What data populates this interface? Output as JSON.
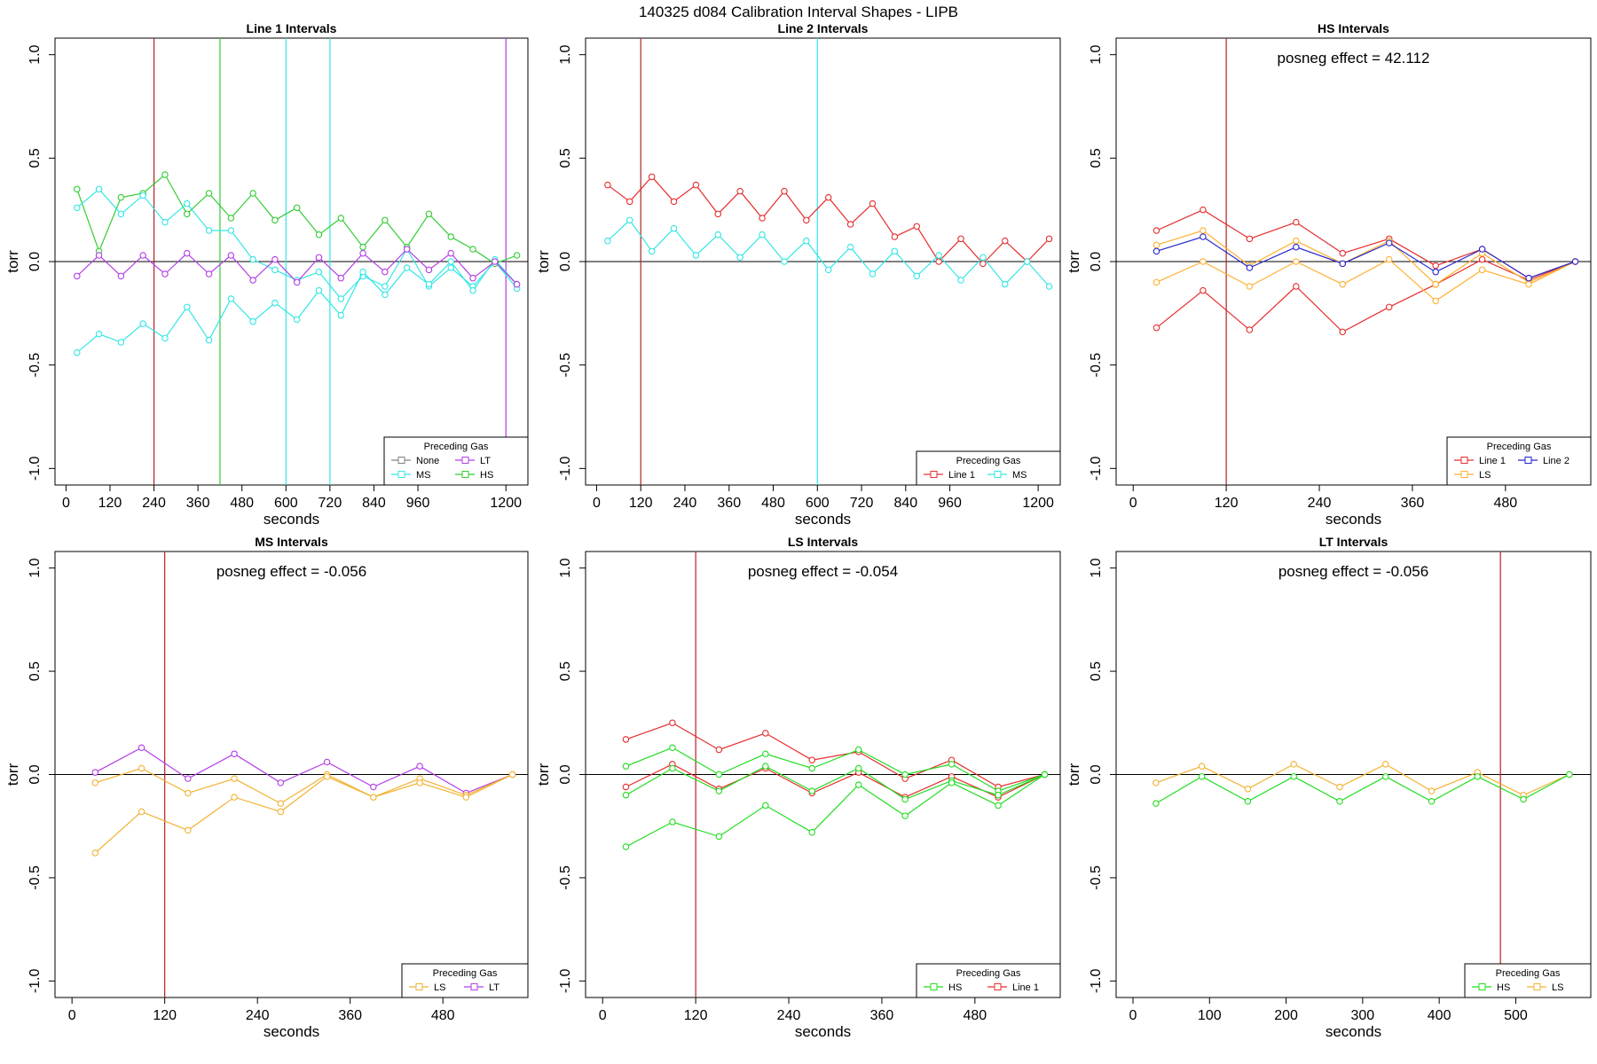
{
  "page_title": "140325   d084   Calibration Interval Shapes - LIPB",
  "colors": {
    "None": "#808080",
    "MS": "#33e6e6",
    "LT": "#b33de6",
    "HS": "#33cc33",
    "Line 1": "#e62e2e",
    "Line 2": "#2626cc",
    "LS": "#ffb030",
    "LS_ms_plot": "#f2b233",
    "HS_ls_plot": "#22dd22",
    "HS_lt_plot": "#22dd22",
    "zero_line": "#000000",
    "vline_red": "#b22222"
  },
  "chart_data": [
    {
      "type": "line",
      "title": "Line 1 Intervals",
      "xlabel": "seconds",
      "ylabel": "torr",
      "xlim": [
        -30,
        1260
      ],
      "ylim": [
        -1.08,
        1.08
      ],
      "xticks": [
        0,
        120,
        240,
        360,
        480,
        600,
        720,
        840,
        960,
        1200
      ],
      "yticks": [
        1.0,
        0.5,
        0.0,
        -0.5,
        -1.0
      ],
      "vlines": [
        {
          "x": 240,
          "color": "#b22222"
        },
        {
          "x": 420,
          "color": "#33cc33"
        },
        {
          "x": 600,
          "color": "#33e6e6"
        },
        {
          "x": 720,
          "color": "#33e6e6"
        },
        {
          "x": 1200,
          "color": "#b33de6"
        }
      ],
      "legend": {
        "title": "Preceding Gas",
        "position": "bottom-right",
        "entries": [
          [
            "None",
            "#808080"
          ],
          [
            "LT",
            "#b33de6"
          ],
          [
            "MS",
            "#33e6e6"
          ],
          [
            "HS",
            "#33cc33"
          ]
        ],
        "cols": 2
      },
      "series": [
        {
          "name": "HS",
          "color": "#33cc33",
          "x": [
            30,
            90,
            150,
            210,
            270,
            330,
            390,
            450,
            510,
            570,
            630,
            690,
            750,
            810,
            870,
            930,
            990,
            1050,
            1110,
            1170,
            1230
          ],
          "y": [
            0.35,
            0.05,
            0.31,
            0.33,
            0.42,
            0.23,
            0.33,
            0.21,
            0.33,
            0.2,
            0.26,
            0.13,
            0.21,
            0.07,
            0.2,
            0.07,
            0.23,
            0.12,
            0.06,
            -0.01,
            0.03
          ]
        },
        {
          "name": "MS",
          "color": "#33e6e6",
          "x": [
            30,
            90,
            150,
            210,
            270,
            330,
            390,
            450,
            510,
            570,
            630,
            690,
            750,
            810,
            870,
            930,
            990,
            1050,
            1110,
            1170,
            1230
          ],
          "y": [
            0.26,
            0.35,
            0.23,
            0.32,
            0.19,
            0.28,
            0.15,
            0.15,
            0.01,
            -0.04,
            -0.09,
            -0.05,
            -0.18,
            -0.07,
            -0.12,
            0.06,
            -0.12,
            -0.03,
            -0.12,
            0.0,
            -0.13
          ]
        },
        {
          "name": "MS",
          "color": "#33e6e6",
          "x": [
            30,
            90,
            150,
            210,
            270,
            330,
            390,
            450,
            510,
            570,
            630,
            690,
            750,
            810,
            870,
            930,
            990,
            1050,
            1110,
            1170,
            1230
          ],
          "y": [
            -0.44,
            -0.35,
            -0.39,
            -0.3,
            -0.37,
            -0.22,
            -0.38,
            -0.18,
            -0.29,
            -0.2,
            -0.28,
            -0.14,
            -0.26,
            -0.05,
            -0.16,
            -0.03,
            -0.11,
            0.0,
            -0.14,
            0.01,
            -0.11
          ]
        },
        {
          "name": "LT",
          "color": "#b33de6",
          "x": [
            30,
            90,
            150,
            210,
            270,
            330,
            390,
            450,
            510,
            570,
            630,
            690,
            750,
            810,
            870,
            930,
            990,
            1050,
            1110,
            1170,
            1230
          ],
          "y": [
            -0.07,
            0.03,
            -0.07,
            0.03,
            -0.06,
            0.04,
            -0.06,
            0.03,
            -0.09,
            0.01,
            -0.1,
            0.02,
            -0.08,
            0.04,
            -0.05,
            0.06,
            -0.04,
            0.04,
            -0.08,
            0.0,
            -0.11
          ]
        }
      ]
    },
    {
      "type": "line",
      "title": "Line 2 Intervals",
      "xlabel": "seconds",
      "ylabel": "torr",
      "xlim": [
        -30,
        1260
      ],
      "ylim": [
        -1.08,
        1.08
      ],
      "xticks": [
        0,
        120,
        240,
        360,
        480,
        600,
        720,
        840,
        960,
        1200
      ],
      "yticks": [
        1.0,
        0.5,
        0.0,
        -0.5,
        -1.0
      ],
      "vlines": [
        {
          "x": 120,
          "color": "#b22222"
        },
        {
          "x": 600,
          "color": "#33e6e6"
        }
      ],
      "legend": {
        "title": "Preceding Gas",
        "position": "bottom-right",
        "entries": [
          [
            "Line 1",
            "#e62e2e"
          ],
          [
            "MS",
            "#33e6e6"
          ]
        ],
        "cols": 2
      },
      "series": [
        {
          "name": "Line 1",
          "color": "#e62e2e",
          "x": [
            30,
            90,
            150,
            210,
            270,
            330,
            390,
            450,
            510,
            570,
            630,
            690,
            750,
            810,
            870,
            930,
            990,
            1050,
            1110,
            1170,
            1230
          ],
          "y": [
            0.37,
            0.29,
            0.41,
            0.29,
            0.37,
            0.23,
            0.34,
            0.21,
            0.34,
            0.2,
            0.31,
            0.18,
            0.28,
            0.12,
            0.17,
            0.0,
            0.11,
            -0.01,
            0.1,
            0.0,
            0.11
          ]
        },
        {
          "name": "MS",
          "color": "#33e6e6",
          "x": [
            30,
            90,
            150,
            210,
            270,
            330,
            390,
            450,
            510,
            570,
            630,
            690,
            750,
            810,
            870,
            930,
            990,
            1050,
            1110,
            1170,
            1230
          ],
          "y": [
            0.1,
            0.2,
            0.05,
            0.16,
            0.03,
            0.13,
            0.02,
            0.13,
            0.0,
            0.1,
            -0.04,
            0.07,
            -0.06,
            0.05,
            -0.07,
            0.03,
            -0.09,
            0.02,
            -0.11,
            0.0,
            -0.12
          ]
        }
      ]
    },
    {
      "type": "line",
      "title": "HS Intervals",
      "annotation": "posneg effect = 42.112",
      "xlabel": "seconds",
      "ylabel": "torr",
      "xlim": [
        -22,
        590
      ],
      "ylim": [
        -1.08,
        1.08
      ],
      "xticks": [
        0,
        120,
        240,
        360,
        480
      ],
      "yticks": [
        1.0,
        0.5,
        0.0,
        -0.5,
        -1.0
      ],
      "vlines": [
        {
          "x": 120,
          "color": "#b22222"
        }
      ],
      "legend": {
        "title": "Preceding Gas",
        "position": "bottom-right",
        "entries": [
          [
            "Line 1",
            "#e62e2e"
          ],
          [
            "Line 2",
            "#2626cc"
          ],
          [
            "LS",
            "#ffb030"
          ]
        ],
        "cols": 2
      },
      "series": [
        {
          "name": "Line 1",
          "color": "#e62e2e",
          "x": [
            30,
            90,
            150,
            210,
            270,
            330,
            390,
            450,
            510,
            570
          ],
          "y": [
            0.15,
            0.25,
            0.11,
            0.19,
            0.04,
            0.11,
            -0.02,
            0.06,
            -0.08,
            0.0
          ]
        },
        {
          "name": "Line 1",
          "color": "#e62e2e",
          "x": [
            30,
            90,
            150,
            210,
            270,
            330,
            390,
            450,
            510,
            570
          ],
          "y": [
            -0.32,
            -0.14,
            -0.33,
            -0.12,
            -0.34,
            -0.22,
            -0.11,
            0.01,
            -0.09,
            0.0
          ]
        },
        {
          "name": "LS",
          "color": "#ffb030",
          "x": [
            30,
            90,
            150,
            210,
            270,
            330,
            390,
            450,
            510,
            570
          ],
          "y": [
            0.08,
            0.15,
            -0.02,
            0.1,
            -0.01,
            0.1,
            -0.11,
            0.04,
            -0.1,
            0.0
          ]
        },
        {
          "name": "LS",
          "color": "#ffb030",
          "x": [
            30,
            90,
            150,
            210,
            270,
            330,
            390,
            450,
            510,
            570
          ],
          "y": [
            -0.1,
            0.0,
            -0.12,
            0.0,
            -0.11,
            0.01,
            -0.19,
            -0.04,
            -0.11,
            0.0
          ]
        },
        {
          "name": "Line 2",
          "color": "#2626cc",
          "x": [
            30,
            90,
            150,
            210,
            270,
            330,
            390,
            450,
            510,
            570
          ],
          "y": [
            0.05,
            0.12,
            -0.03,
            0.07,
            -0.01,
            0.09,
            -0.05,
            0.06,
            -0.08,
            0.0
          ]
        }
      ]
    },
    {
      "type": "line",
      "title": "MS Intervals",
      "annotation": "posneg effect = -0.056",
      "xlabel": "seconds",
      "ylabel": "torr",
      "xlim": [
        -22,
        590
      ],
      "ylim": [
        -1.08,
        1.08
      ],
      "xticks": [
        0,
        120,
        240,
        360,
        480
      ],
      "yticks": [
        1.0,
        0.5,
        0.0,
        -0.5,
        -1.0
      ],
      "vlines": [
        {
          "x": 120,
          "color": "#b22222"
        }
      ],
      "legend": {
        "title": "Preceding Gas",
        "position": "bottom-right",
        "entries": [
          [
            "LS",
            "#f2b233"
          ],
          [
            "LT",
            "#b33de6"
          ]
        ],
        "cols": 2
      },
      "series": [
        {
          "name": "LT",
          "color": "#b33de6",
          "x": [
            30,
            90,
            150,
            210,
            270,
            330,
            390,
            450,
            510,
            570
          ],
          "y": [
            0.01,
            0.13,
            -0.02,
            0.1,
            -0.04,
            0.06,
            -0.06,
            0.04,
            -0.09,
            0.0
          ]
        },
        {
          "name": "LS",
          "color": "#f2b233",
          "x": [
            30,
            90,
            150,
            210,
            270,
            330,
            390,
            450,
            510,
            570
          ],
          "y": [
            -0.04,
            0.03,
            -0.09,
            -0.02,
            -0.14,
            0.0,
            -0.11,
            -0.02,
            -0.1,
            0.0
          ]
        },
        {
          "name": "LS",
          "color": "#f2b233",
          "x": [
            30,
            90,
            150,
            210,
            270,
            330,
            390,
            450,
            510,
            570
          ],
          "y": [
            -0.38,
            -0.18,
            -0.27,
            -0.11,
            -0.18,
            -0.01,
            -0.11,
            -0.04,
            -0.11,
            0.0
          ]
        }
      ]
    },
    {
      "type": "line",
      "title": "LS Intervals",
      "annotation": "posneg effect = -0.054",
      "xlabel": "seconds",
      "ylabel": "torr",
      "xlim": [
        -22,
        590
      ],
      "ylim": [
        -1.08,
        1.08
      ],
      "xticks": [
        0,
        120,
        240,
        360,
        480
      ],
      "yticks": [
        1.0,
        0.5,
        0.0,
        -0.5,
        -1.0
      ],
      "vlines": [
        {
          "x": 120,
          "color": "#b22222"
        }
      ],
      "legend": {
        "title": "Preceding Gas",
        "position": "bottom-right",
        "entries": [
          [
            "HS",
            "#22dd22"
          ],
          [
            "Line 1",
            "#e62e2e"
          ]
        ],
        "cols": 2
      },
      "series": [
        {
          "name": "Line 1",
          "color": "#e62e2e",
          "x": [
            30,
            90,
            150,
            210,
            270,
            330,
            390,
            450,
            510,
            570
          ],
          "y": [
            0.17,
            0.25,
            0.12,
            0.2,
            0.07,
            0.11,
            -0.02,
            0.07,
            -0.06,
            0.0
          ]
        },
        {
          "name": "Line 1",
          "color": "#e62e2e",
          "x": [
            30,
            90,
            150,
            210,
            270,
            330,
            390,
            450,
            510,
            570
          ],
          "y": [
            -0.06,
            0.05,
            -0.07,
            0.03,
            -0.09,
            0.01,
            -0.11,
            -0.01,
            -0.11,
            0.0
          ]
        },
        {
          "name": "HS",
          "color": "#22dd22",
          "x": [
            30,
            90,
            150,
            210,
            270,
            330,
            390,
            450,
            510,
            570
          ],
          "y": [
            0.04,
            0.13,
            0.0,
            0.1,
            0.03,
            0.12,
            0.0,
            0.05,
            -0.08,
            0.0
          ]
        },
        {
          "name": "HS",
          "color": "#22dd22",
          "x": [
            30,
            90,
            150,
            210,
            270,
            330,
            390,
            450,
            510,
            570
          ],
          "y": [
            -0.1,
            0.03,
            -0.08,
            0.04,
            -0.08,
            0.03,
            -0.12,
            -0.03,
            -0.1,
            0.0
          ]
        },
        {
          "name": "HS",
          "color": "#22dd22",
          "x": [
            30,
            90,
            150,
            210,
            270,
            330,
            390,
            450,
            510,
            570
          ],
          "y": [
            -0.35,
            -0.23,
            -0.3,
            -0.15,
            -0.28,
            -0.05,
            -0.2,
            -0.04,
            -0.15,
            0.0
          ]
        }
      ]
    },
    {
      "type": "line",
      "title": "LT Intervals",
      "annotation": "posneg effect = -0.056",
      "xlabel": "seconds",
      "ylabel": "torr",
      "xlim": [
        -22,
        598
      ],
      "ylim": [
        -1.08,
        1.08
      ],
      "xticks": [
        0,
        100,
        200,
        300,
        400,
        500
      ],
      "yticks": [
        1.0,
        0.5,
        0.0,
        -0.5,
        -1.0
      ],
      "vlines": [
        {
          "x": 480,
          "color": "#b22222"
        }
      ],
      "legend": {
        "title": "Preceding Gas",
        "position": "bottom-right",
        "entries": [
          [
            "HS",
            "#22dd22"
          ],
          [
            "LS",
            "#f2b233"
          ]
        ],
        "cols": 2
      },
      "series": [
        {
          "name": "LS",
          "color": "#f2b233",
          "x": [
            30,
            90,
            150,
            210,
            270,
            330,
            390,
            450,
            510,
            570
          ],
          "y": [
            -0.04,
            0.04,
            -0.07,
            0.05,
            -0.06,
            0.05,
            -0.08,
            0.01,
            -0.1,
            0.0
          ]
        },
        {
          "name": "HS",
          "color": "#22dd22",
          "x": [
            30,
            90,
            150,
            210,
            270,
            330,
            390,
            450,
            510,
            570
          ],
          "y": [
            -0.14,
            -0.01,
            -0.13,
            -0.01,
            -0.13,
            -0.01,
            -0.13,
            -0.01,
            -0.12,
            0.0
          ]
        }
      ]
    }
  ]
}
